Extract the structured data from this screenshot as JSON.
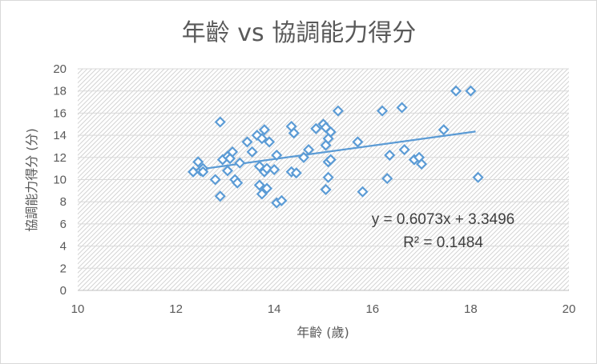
{
  "chart_data": {
    "type": "scatter",
    "title": "年齡 vs 協調能力得分",
    "xlabel": "年齡 (歲)",
    "ylabel": "協調能力得分 (分)",
    "xlim": [
      10,
      20
    ],
    "ylim": [
      0,
      20
    ],
    "x_ticks": [
      "10",
      "12",
      "14",
      "16",
      "18",
      "20"
    ],
    "y_ticks": [
      "0",
      "2",
      "4",
      "6",
      "8",
      "10",
      "12",
      "14",
      "16",
      "18",
      "20"
    ],
    "grid": true,
    "legend": "none",
    "colors": {
      "marker": "#5b9bd5",
      "trendline": "#5b9bd5",
      "hatch": "#c8c8c8"
    },
    "trendline": {
      "type": "linear",
      "slope": 0.6073,
      "intercept": 3.3496,
      "x_range": [
        12.4,
        18.1
      ]
    },
    "annotations": {
      "equation": "y = 0.6073x + 3.3496",
      "r_squared": "R² = 0.1484"
    },
    "points": [
      {
        "x": 12.35,
        "y": 10.7
      },
      {
        "x": 12.45,
        "y": 11.6
      },
      {
        "x": 12.5,
        "y": 10.8
      },
      {
        "x": 12.55,
        "y": 11.0
      },
      {
        "x": 12.55,
        "y": 10.7
      },
      {
        "x": 12.8,
        "y": 10.0
      },
      {
        "x": 12.9,
        "y": 15.2
      },
      {
        "x": 12.9,
        "y": 8.5
      },
      {
        "x": 12.95,
        "y": 11.8
      },
      {
        "x": 13.05,
        "y": 12.1
      },
      {
        "x": 13.05,
        "y": 10.8
      },
      {
        "x": 13.1,
        "y": 11.9
      },
      {
        "x": 13.15,
        "y": 12.5
      },
      {
        "x": 13.2,
        "y": 10.0
      },
      {
        "x": 13.25,
        "y": 9.7
      },
      {
        "x": 13.3,
        "y": 11.5
      },
      {
        "x": 13.45,
        "y": 13.4
      },
      {
        "x": 13.55,
        "y": 12.5
      },
      {
        "x": 13.65,
        "y": 14.0
      },
      {
        "x": 13.7,
        "y": 11.2
      },
      {
        "x": 13.7,
        "y": 9.5
      },
      {
        "x": 13.75,
        "y": 8.7
      },
      {
        "x": 13.75,
        "y": 13.7
      },
      {
        "x": 13.8,
        "y": 14.5
      },
      {
        "x": 13.8,
        "y": 10.7
      },
      {
        "x": 13.85,
        "y": 11.0
      },
      {
        "x": 13.85,
        "y": 9.2
      },
      {
        "x": 13.9,
        "y": 13.4
      },
      {
        "x": 14.0,
        "y": 10.9
      },
      {
        "x": 14.05,
        "y": 12.2
      },
      {
        "x": 14.05,
        "y": 7.9
      },
      {
        "x": 14.15,
        "y": 8.1
      },
      {
        "x": 14.35,
        "y": 10.7
      },
      {
        "x": 14.35,
        "y": 14.8
      },
      {
        "x": 14.4,
        "y": 14.2
      },
      {
        "x": 14.45,
        "y": 10.6
      },
      {
        "x": 14.6,
        "y": 12.0
      },
      {
        "x": 14.7,
        "y": 12.7
      },
      {
        "x": 14.85,
        "y": 14.6
      },
      {
        "x": 15.0,
        "y": 15.0
      },
      {
        "x": 15.05,
        "y": 14.7
      },
      {
        "x": 15.05,
        "y": 13.1
      },
      {
        "x": 15.05,
        "y": 9.1
      },
      {
        "x": 15.1,
        "y": 11.6
      },
      {
        "x": 15.1,
        "y": 10.2
      },
      {
        "x": 15.1,
        "y": 13.7
      },
      {
        "x": 15.15,
        "y": 14.3
      },
      {
        "x": 15.15,
        "y": 11.8
      },
      {
        "x": 15.3,
        "y": 16.2
      },
      {
        "x": 15.7,
        "y": 13.4
      },
      {
        "x": 15.8,
        "y": 8.9
      },
      {
        "x": 16.2,
        "y": 16.2
      },
      {
        "x": 16.3,
        "y": 10.1
      },
      {
        "x": 16.35,
        "y": 12.2
      },
      {
        "x": 16.6,
        "y": 16.5
      },
      {
        "x": 16.65,
        "y": 12.7
      },
      {
        "x": 16.85,
        "y": 11.8
      },
      {
        "x": 16.95,
        "y": 12.0
      },
      {
        "x": 17.0,
        "y": 11.4
      },
      {
        "x": 17.45,
        "y": 14.5
      },
      {
        "x": 17.7,
        "y": 18.0
      },
      {
        "x": 18.0,
        "y": 18.0
      },
      {
        "x": 18.15,
        "y": 10.2
      }
    ]
  }
}
